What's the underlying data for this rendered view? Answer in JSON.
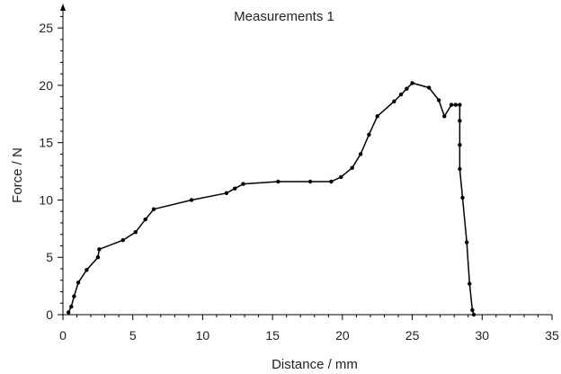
{
  "chart_data": {
    "type": "line",
    "title": "Measurements 1",
    "xlabel": "Distance / mm",
    "ylabel": "Force / N",
    "xlim": [
      0,
      35
    ],
    "ylim": [
      0,
      26.5
    ],
    "xticks": [
      0,
      5,
      10,
      15,
      20,
      25,
      30,
      35
    ],
    "yticks": [
      0,
      5,
      10,
      15,
      20,
      25
    ],
    "x_minor_step": 1,
    "y_minor_step": 1,
    "grid": false,
    "legend": "none",
    "line_color": "#000000",
    "series": [
      {
        "markers": true,
        "x": [
          0.4,
          0.6,
          0.8,
          1.1,
          1.7,
          2.5,
          2.6,
          4.3,
          5.2,
          5.9,
          6.5,
          9.2,
          11.7,
          12.3,
          12.9,
          15.4,
          17.7,
          19.2,
          19.9,
          20.7,
          21.3,
          21.9,
          22.5,
          23.7,
          24.2,
          24.6,
          25.0,
          26.2,
          26.9,
          27.3,
          27.8,
          28.1,
          28.4,
          28.4,
          28.4,
          28.4,
          28.6,
          28.9,
          29.1,
          29.3,
          29.4
        ],
        "y": [
          0.2,
          0.7,
          1.6,
          2.8,
          3.9,
          5.0,
          5.7,
          6.5,
          7.2,
          8.3,
          9.2,
          10.0,
          10.6,
          11.0,
          11.4,
          11.6,
          11.6,
          11.6,
          12.0,
          12.8,
          14.0,
          15.7,
          17.3,
          18.6,
          19.2,
          19.7,
          20.2,
          19.8,
          18.7,
          17.3,
          18.3,
          18.3,
          18.3,
          16.9,
          14.8,
          12.7,
          10.2,
          6.3,
          2.7,
          0.4,
          0.0
        ]
      }
    ]
  }
}
